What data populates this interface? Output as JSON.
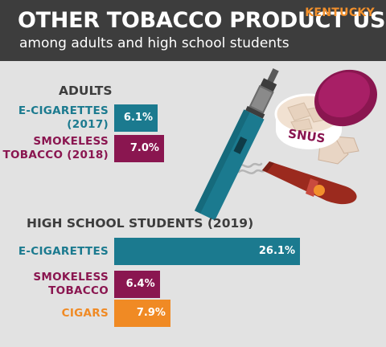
{
  "header": {
    "title": "OTHER TOBACCO PRODUCT USE",
    "subtitle": "among adults and high school students",
    "state": "KENTUCKY"
  },
  "illustration": {
    "snus_label": "SNUS"
  },
  "colors": {
    "teal": "#1b7a8f",
    "maroon": "#8a1650",
    "orange": "#f08a24",
    "header_bg": "#3d3d3d",
    "background": "#e2e2e2"
  },
  "chart_data": {
    "type": "bar",
    "orientation": "horizontal",
    "unit": "%",
    "groups": [
      {
        "title": "ADULTS",
        "bars": [
          {
            "label_lines": [
              "E-CIGARETTES",
              "(2017)"
            ],
            "value": 6.1,
            "value_label": "6.1%",
            "color": "#1b7a8f"
          },
          {
            "label_lines": [
              "SMOKELESS",
              "TOBACCO (2018)"
            ],
            "value": 7.0,
            "value_label": "7.0%",
            "color": "#8a1650"
          }
        ]
      },
      {
        "title": "HIGH SCHOOL STUDENTS (2019)",
        "bars": [
          {
            "label_lines": [
              "E-CIGARETTES"
            ],
            "value": 26.1,
            "value_label": "26.1%",
            "color": "#1b7a8f"
          },
          {
            "label_lines": [
              "SMOKELESS",
              "TOBACCO"
            ],
            "value": 6.4,
            "value_label": "6.4%",
            "color": "#8a1650"
          },
          {
            "label_lines": [
              "CIGARS"
            ],
            "value": 7.9,
            "value_label": "7.9%",
            "color": "#f08a24"
          }
        ]
      }
    ]
  }
}
